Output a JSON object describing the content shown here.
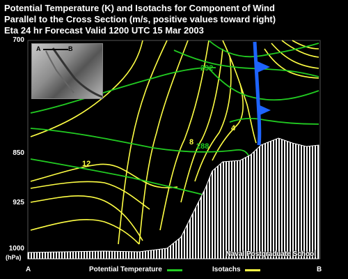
{
  "title": {
    "line1": "Potential Temperature (K) and Isotachs for Component of Wind",
    "line2": "Parallel to the Cross Section (m/s, positive values toward right)",
    "line3": "Eta 24 hr Forecast Valid 1200 UTC  15 Mar 2003"
  },
  "y_axis": {
    "ticks": [
      "700",
      "850",
      "925",
      "1000"
    ],
    "unit": "(hPa)"
  },
  "x_axis": {
    "left": "A",
    "right": "B"
  },
  "inset": {
    "label_a": "A",
    "label_b": "B"
  },
  "contour_labels": {
    "theta": [
      "292",
      "288"
    ],
    "isotach": [
      "12",
      "8",
      "4"
    ]
  },
  "credit": "Naval Postgraduate School",
  "legend": {
    "theta_label": "Potential Temperature",
    "isotach_label": "Isotachs",
    "theta_color": "#22cc22",
    "isotach_color": "#ffff44"
  },
  "colors": {
    "background": "#000000",
    "front": "#1e64ff",
    "terrain": "#ffffff"
  }
}
